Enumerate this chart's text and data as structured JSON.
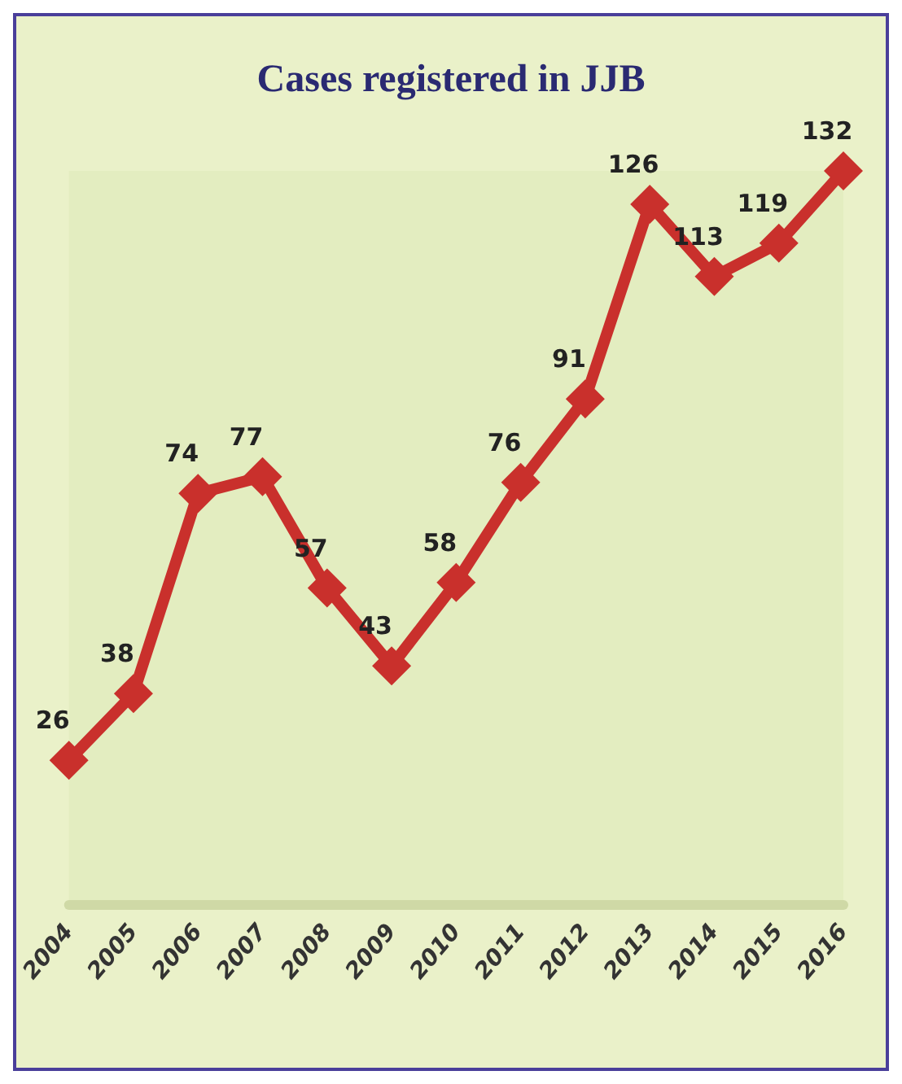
{
  "chart_data": {
    "type": "line",
    "title": "Cases registered in JJB",
    "categories": [
      "2004",
      "2005",
      "2006",
      "2007",
      "2008",
      "2009",
      "2010",
      "2011",
      "2012",
      "2013",
      "2014",
      "2015",
      "2016"
    ],
    "series": [
      {
        "color": "#c9302c",
        "values": [
          26,
          38,
          74,
          77,
          57,
          43,
          58,
          76,
          91,
          126,
          113,
          119,
          132
        ]
      }
    ],
    "data_labels": true,
    "marker": "diamond"
  }
}
